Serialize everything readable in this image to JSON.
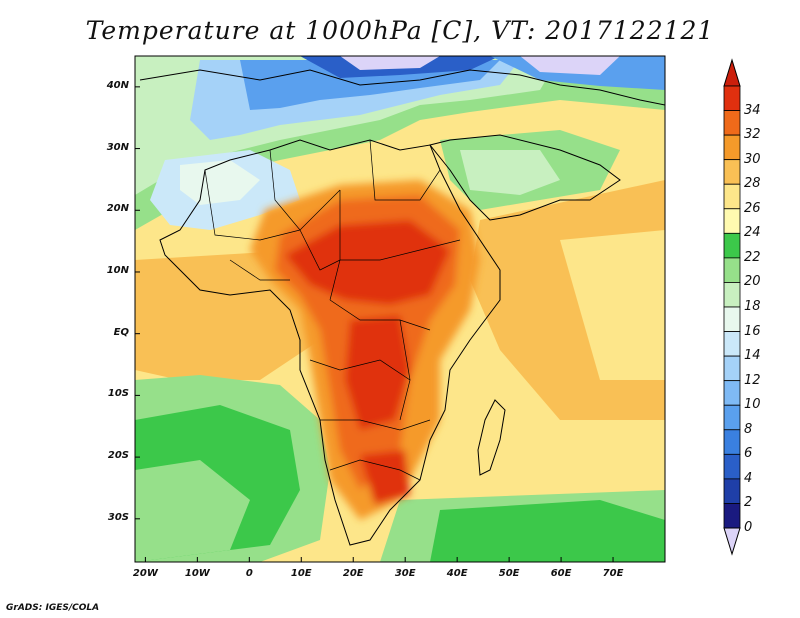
{
  "title": "Temperature at 1000hPa [C], VT: 2017122121",
  "credit": "GrADS: IGES/COLA",
  "map": {
    "lat_labels": [
      "40N",
      "30N",
      "20N",
      "10N",
      "EQ",
      "10S",
      "20S",
      "30S"
    ],
    "lat_values": [
      40,
      30,
      20,
      10,
      0,
      -10,
      -20,
      -30
    ],
    "lon_labels": [
      "20W",
      "10W",
      "0",
      "10E",
      "20E",
      "30E",
      "40E",
      "50E",
      "60E",
      "70E"
    ],
    "lon_values": [
      -20,
      -10,
      0,
      10,
      20,
      30,
      40,
      50,
      60,
      70
    ],
    "extent": {
      "lon_min": -22,
      "lon_max": 80,
      "lat_min": -37,
      "lat_max": 45
    }
  },
  "colorbar": {
    "labels": [
      "0",
      "2",
      "4",
      "6",
      "8",
      "10",
      "12",
      "14",
      "16",
      "18",
      "20",
      "22",
      "24",
      "26",
      "28",
      "30",
      "32",
      "34"
    ],
    "colors": [
      "#1a1a80",
      "#1f3fa8",
      "#2a5fc8",
      "#3a80e0",
      "#5aa0ee",
      "#7fbaf5",
      "#a5d2f8",
      "#cbe8f9",
      "#e8f8ee",
      "#c8f0c0",
      "#96e08a",
      "#3cc84a",
      "#fffab0",
      "#fde68a",
      "#f9c055",
      "#f59a2a",
      "#ef6a1a",
      "#e0300f"
    ],
    "low_color": "#dcd4f8",
    "high_color": "#cc1f0c"
  }
}
